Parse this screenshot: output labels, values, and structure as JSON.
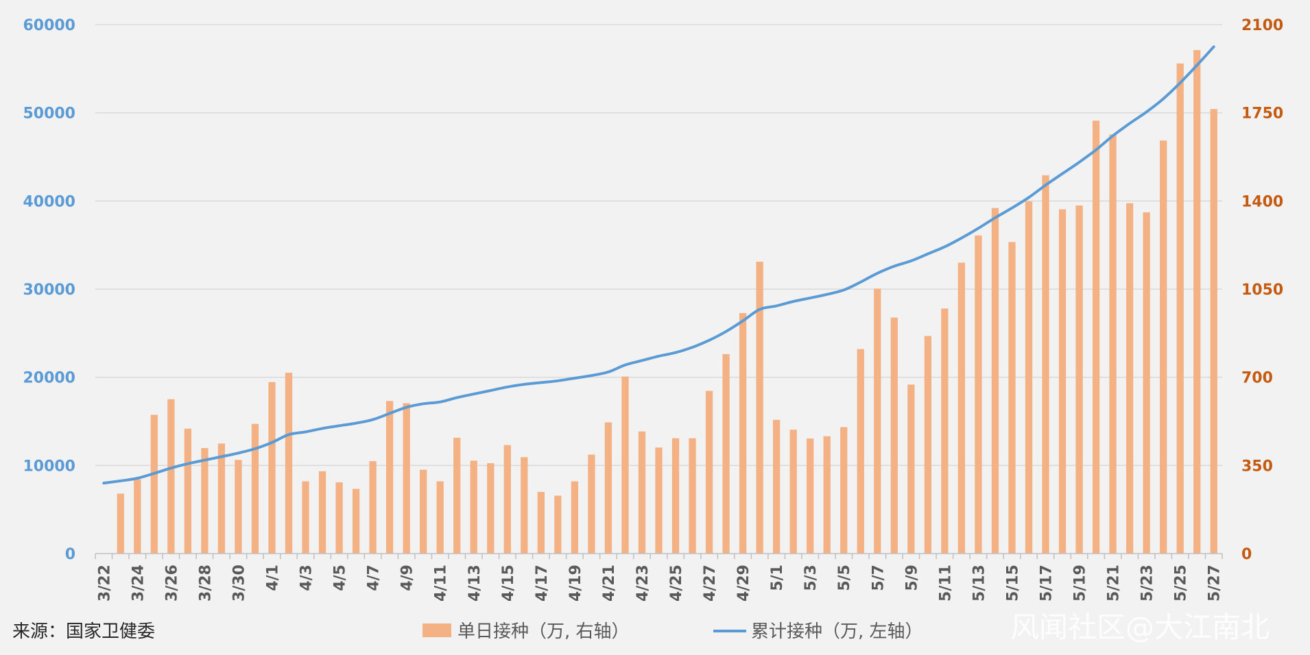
{
  "chart_data": {
    "type": "bar+line",
    "categories": [
      "3/22",
      "3/23",
      "3/24",
      "3/25",
      "3/26",
      "3/27",
      "3/28",
      "3/29",
      "3/30",
      "3/31",
      "4/1",
      "4/2",
      "4/3",
      "4/4",
      "4/5",
      "4/6",
      "4/7",
      "4/8",
      "4/9",
      "4/10",
      "4/11",
      "4/12",
      "4/13",
      "4/14",
      "4/15",
      "4/16",
      "4/17",
      "4/18",
      "4/19",
      "4/20",
      "4/21",
      "4/22",
      "4/23",
      "4/24",
      "4/25",
      "4/26",
      "4/27",
      "4/28",
      "4/29",
      "4/30",
      "5/1",
      "5/2",
      "5/3",
      "5/4",
      "5/5",
      "5/6",
      "5/7",
      "5/8",
      "5/9",
      "5/10",
      "5/11",
      "5/12",
      "5/13",
      "5/14",
      "5/15",
      "5/16",
      "5/17",
      "5/18",
      "5/19",
      "5/20",
      "5/21",
      "5/22",
      "5/23",
      "5/24",
      "5/25",
      "5/26",
      "5/27"
    ],
    "x_tick_labels": [
      "3/22",
      "3/24",
      "3/26",
      "3/28",
      "3/30",
      "4/1",
      "4/3",
      "4/5",
      "4/7",
      "4/9",
      "4/11",
      "4/13",
      "4/15",
      "4/17",
      "4/19",
      "4/21",
      "4/23",
      "4/25",
      "4/27",
      "4/29",
      "5/1",
      "5/3",
      "5/5",
      "5/7",
      "5/9",
      "5/11",
      "5/13",
      "5/15",
      "5/17",
      "5/19",
      "5/21",
      "5/23",
      "5/25",
      "5/27"
    ],
    "series": [
      {
        "name": "单日接种（万, 右轴）",
        "type": "bar",
        "axis": "right",
        "values": [
          null,
          238,
          295,
          551,
          613,
          496,
          419,
          437,
          372,
          515,
          681,
          718,
          287,
          327,
          283,
          257,
          367,
          606,
          597,
          333,
          287,
          460,
          369,
          359,
          431,
          383,
          245,
          230,
          287,
          393,
          521,
          703,
          485,
          421,
          458,
          458,
          646,
          792,
          955,
          1159,
          531,
          492,
          457,
          466,
          502,
          812,
          1052,
          937,
          671,
          864,
          973,
          1155,
          1263,
          1372,
          1237,
          1398,
          1502,
          1367,
          1382,
          1719,
          1664,
          1391,
          1355,
          1640,
          1946,
          1999,
          1765
        ]
      },
      {
        "name": "累计接种（万, 左轴）",
        "type": "line",
        "axis": "left",
        "values": [
          8000,
          8250,
          8550,
          9100,
          9700,
          10200,
          10600,
          11000,
          11400,
          11900,
          12600,
          13500,
          13800,
          14200,
          14500,
          14800,
          15200,
          15900,
          16600,
          17000,
          17200,
          17700,
          18100,
          18500,
          18900,
          19200,
          19400,
          19600,
          19900,
          20200,
          20600,
          21400,
          21900,
          22400,
          22800,
          23400,
          24200,
          25200,
          26400,
          27700,
          28100,
          28600,
          29000,
          29400,
          29900,
          30800,
          31800,
          32600,
          33200,
          34000,
          34800,
          35800,
          36900,
          38100,
          39200,
          40400,
          41800,
          43100,
          44400,
          45800,
          47400,
          48800,
          50100,
          51600,
          53400,
          55400,
          57500
        ]
      }
    ],
    "left_axis": {
      "ylim": [
        0,
        60000
      ],
      "ticks": [
        "0",
        "10000",
        "20000",
        "30000",
        "40000",
        "50000",
        "60000"
      ],
      "color": "#5b9bd5"
    },
    "right_axis": {
      "ylim": [
        0,
        2100
      ],
      "ticks": [
        "0",
        "350",
        "700",
        "1050",
        "1400",
        "1750",
        "2100"
      ],
      "color": "#c55a11"
    },
    "grid": true,
    "legend_position": "bottom-center",
    "colors": {
      "bar": "#f4b183",
      "line": "#5b9bd5",
      "grid": "#d9d9d9",
      "axis": "#bfbfbf",
      "background": "#f2f2f2"
    }
  },
  "footer": {
    "source": "来源：国家卫健委",
    "watermark": "风闻社区@大江南北"
  },
  "legend": {
    "bar_label": "单日接种（万, 右轴）",
    "line_label": "累计接种（万, 左轴）"
  }
}
